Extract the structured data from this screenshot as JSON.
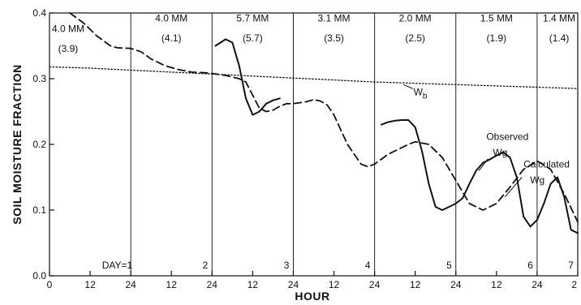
{
  "chart_data": {
    "type": "line",
    "xlabel": "HOUR",
    "ylabel": "SOIL MOISTURE FRACTION",
    "xlim": [
      0,
      156
    ],
    "ylim": [
      0.0,
      0.4
    ],
    "y_ticks": [
      0.0,
      0.1,
      0.2,
      0.3,
      0.4
    ],
    "y_tick_labels": [
      "0.0",
      "0.1",
      "0.2",
      "0.3",
      "0.4"
    ],
    "x_ticks": [
      0,
      12,
      24,
      36,
      48,
      60,
      72,
      84,
      96,
      108,
      120,
      132,
      144,
      156
    ],
    "x_tick_labels": [
      "0",
      "12",
      "24",
      "12",
      "24",
      "12",
      "24",
      "12",
      "24",
      "12",
      "24",
      "12",
      "24",
      "2"
    ],
    "day_boundaries": [
      24,
      48,
      72,
      96,
      120,
      144
    ],
    "day_labels": [
      {
        "text": "DAY=1",
        "x": 20
      },
      {
        "text": "2",
        "x": 46
      },
      {
        "text": "3",
        "x": 70
      },
      {
        "text": "4",
        "x": 94
      },
      {
        "text": "5",
        "x": 118
      },
      {
        "text": "6",
        "x": 142
      },
      {
        "text": "7",
        "x": 154
      }
    ],
    "rain_labels": [
      {
        "line1": "4.0 MM",
        "line2": "(3.9)",
        "x": 5.5,
        "y1": 0.371,
        "y2": 0.341
      },
      {
        "line1": "4.0 MM",
        "line2": "(4.1)",
        "x": 36,
        "y1": 0.387,
        "y2": 0.357
      },
      {
        "line1": "5.7 MM",
        "line2": "(5.7)",
        "x": 60,
        "y1": 0.387,
        "y2": 0.357
      },
      {
        "line1": "3.1 MM",
        "line2": "(3.5)",
        "x": 84,
        "y1": 0.387,
        "y2": 0.357
      },
      {
        "line1": "2.0 MM",
        "line2": "(2.5)",
        "x": 108,
        "y1": 0.387,
        "y2": 0.357
      },
      {
        "line1": "1.5 MM",
        "line2": "(1.9)",
        "x": 132,
        "y1": 0.387,
        "y2": 0.357
      },
      {
        "line1": "1.4 MM",
        "line2": "(1.4)",
        "x": 150.5,
        "y1": 0.387,
        "y2": 0.357
      }
    ],
    "series": [
      {
        "name": "Wb",
        "style": "dotted",
        "x": [
          0,
          12,
          24,
          36,
          48,
          60,
          72,
          84,
          96,
          108,
          120,
          132,
          144,
          156
        ],
        "y": [
          0.318,
          0.316,
          0.313,
          0.31,
          0.307,
          0.304,
          0.301,
          0.298,
          0.295,
          0.293,
          0.291,
          0.289,
          0.287,
          0.285
        ]
      },
      {
        "name": "Calculated Wg",
        "style": "dashed",
        "x": [
          6,
          10,
          14,
          18,
          20,
          24,
          27,
          30,
          34,
          38,
          42,
          46,
          48,
          52,
          56,
          58,
          60,
          62,
          64,
          66,
          68,
          70,
          72,
          76,
          78,
          80,
          82,
          84,
          88,
          92,
          94,
          96,
          100,
          104,
          106,
          108,
          112,
          116,
          120,
          124,
          128,
          132,
          136,
          140,
          144,
          148,
          152,
          156
        ],
        "y": [
          0.4,
          0.385,
          0.365,
          0.35,
          0.347,
          0.346,
          0.341,
          0.33,
          0.32,
          0.314,
          0.31,
          0.309,
          0.308,
          0.305,
          0.3,
          0.295,
          0.275,
          0.255,
          0.25,
          0.252,
          0.258,
          0.262,
          0.262,
          0.265,
          0.268,
          0.266,
          0.26,
          0.245,
          0.2,
          0.17,
          0.166,
          0.17,
          0.185,
          0.195,
          0.2,
          0.204,
          0.2,
          0.18,
          0.145,
          0.11,
          0.1,
          0.11,
          0.135,
          0.162,
          0.175,
          0.162,
          0.125,
          0.082
        ]
      },
      {
        "name": "Observed Wg",
        "style": "solid",
        "segments": [
          {
            "x": [
              49,
              52,
              54,
              56,
              58,
              60,
              62,
              64,
              66,
              68
            ],
            "y": [
              0.35,
              0.36,
              0.355,
              0.32,
              0.27,
              0.245,
              0.25,
              0.262,
              0.267,
              0.27
            ]
          },
          {
            "x": [
              98,
              100,
              102,
              104,
              106,
              108,
              110,
              112,
              114,
              116,
              118,
              120,
              122,
              124,
              126,
              128,
              130
            ],
            "y": [
              0.23,
              0.234,
              0.236,
              0.237,
              0.237,
              0.226,
              0.19,
              0.14,
              0.105,
              0.1,
              0.105,
              0.11,
              0.118,
              0.14,
              0.16,
              0.172,
              0.177
            ]
          },
          {
            "x": [
              130,
              132,
              134,
              136,
              138,
              140,
              142,
              144,
              146,
              148,
              150,
              152,
              154,
              156
            ],
            "y": [
              0.177,
              0.183,
              0.188,
              0.18,
              0.15,
              0.09,
              0.075,
              0.085,
              0.11,
              0.14,
              0.15,
              0.12,
              0.07,
              0.065
            ]
          }
        ]
      }
    ],
    "annotations": [
      {
        "name": "wb-label",
        "text": "Wb",
        "x": 107.5,
        "y": 0.275
      },
      {
        "name": "observed-label",
        "text": "Observed",
        "line2": "Wg",
        "x": 129,
        "y": 0.207,
        "y2": 0.183
      },
      {
        "name": "calculated-label",
        "text": "Calculated",
        "line2": "Wg",
        "x": 140,
        "y": 0.165,
        "y2": 0.141
      }
    ]
  }
}
